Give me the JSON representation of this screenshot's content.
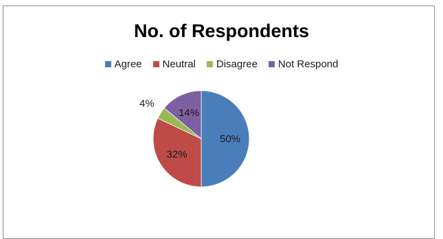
{
  "chart_data": {
    "type": "pie",
    "title": "No. of Respondents",
    "legend_position": "top",
    "categories": [
      "Agree",
      "Neutral",
      "Disagree",
      "Not Respond"
    ],
    "values": [
      50,
      32,
      4,
      14
    ],
    "labels": [
      "50%",
      "32%",
      "4%",
      "14%"
    ],
    "colors": [
      "#4a7ebb",
      "#be4b48",
      "#98b954",
      "#7d60a0"
    ]
  }
}
